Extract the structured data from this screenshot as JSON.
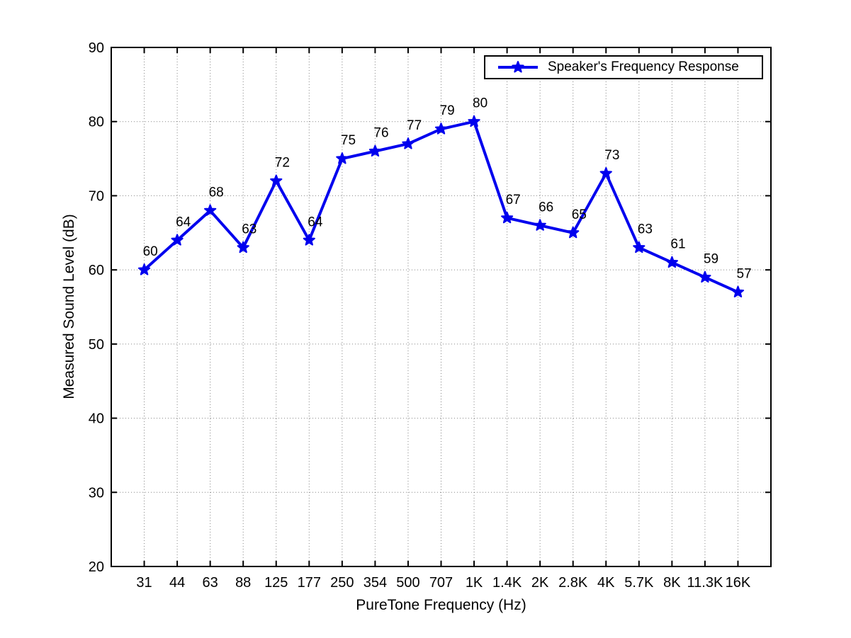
{
  "figure": {
    "background": "#ffffff"
  },
  "chart_data": {
    "type": "line",
    "title": "",
    "xlabel": "PureTone Frequency (Hz)",
    "ylabel": "Measured Sound Level (dB)",
    "categories": [
      "31",
      "44",
      "63",
      "88",
      "125",
      "177",
      "250",
      "354",
      "500",
      "707",
      "1K",
      "1.4K",
      "2K",
      "2.8K",
      "4K",
      "5.7K",
      "8K",
      "11.3K",
      "16K"
    ],
    "series": [
      {
        "name": "Speaker's Frequency Response",
        "values": [
          60,
          64,
          68,
          63,
          72,
          64,
          75,
          76,
          77,
          79,
          80,
          67,
          66,
          65,
          73,
          63,
          61,
          59,
          57
        ],
        "color": "#0000EE",
        "marker": "star"
      }
    ],
    "ylim": [
      20,
      90
    ],
    "yticks": [
      20,
      30,
      40,
      50,
      60,
      70,
      80,
      90
    ],
    "grid": true,
    "grid_style": "dotted",
    "legend_position": "top-right",
    "show_point_labels": true
  }
}
